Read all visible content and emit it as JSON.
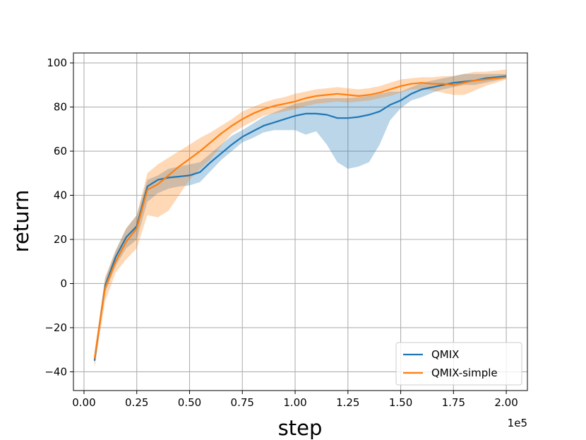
{
  "chart_data": {
    "type": "line",
    "xlabel": "step",
    "ylabel": "return",
    "x_offset_label": "1e5",
    "xlim": [
      -0.05,
      2.1
    ],
    "ylim": [
      -48.5,
      104.5
    ],
    "xticks": [
      0.0,
      0.25,
      0.5,
      0.75,
      1.0,
      1.25,
      1.5,
      1.75,
      2.0
    ],
    "xtick_labels": [
      "0.00",
      "0.25",
      "0.50",
      "0.75",
      "1.00",
      "1.25",
      "1.50",
      "1.75",
      "2.00"
    ],
    "yticks": [
      -40,
      -20,
      0,
      20,
      40,
      60,
      80,
      100
    ],
    "ytick_labels": [
      "−40",
      "−20",
      "0",
      "20",
      "40",
      "60",
      "80",
      "100"
    ],
    "grid": true,
    "legend_position": "bottom-right",
    "x": [
      0.05,
      0.1,
      0.15,
      0.2,
      0.25,
      0.3,
      0.35,
      0.4,
      0.45,
      0.5,
      0.55,
      0.6,
      0.65,
      0.7,
      0.75,
      0.8,
      0.85,
      0.9,
      0.95,
      1.0,
      1.05,
      1.1,
      1.15,
      1.2,
      1.25,
      1.3,
      1.35,
      1.4,
      1.45,
      1.5,
      1.55,
      1.6,
      1.65,
      1.7,
      1.75,
      1.8,
      1.85,
      1.9,
      1.95,
      2.0
    ],
    "series": [
      {
        "name": "QMIX",
        "color": "#1f77b4",
        "values": [
          -35,
          -1,
          12,
          21,
          26,
          44,
          47,
          48,
          48.5,
          49,
          50.5,
          55,
          59,
          63,
          66.5,
          69,
          71.5,
          73,
          74.5,
          76,
          77,
          77,
          76.5,
          75,
          75,
          75.5,
          76.5,
          78,
          81,
          83,
          86,
          88,
          89,
          90,
          91,
          91.5,
          92,
          93,
          93.5,
          94
        ],
        "lower": [
          -37,
          -4,
          8,
          16,
          20,
          37,
          41,
          43,
          44,
          44.5,
          46,
          51,
          56,
          60,
          64,
          66,
          68.5,
          69.5,
          69.5,
          69.5,
          67.5,
          69,
          63,
          55,
          52,
          53,
          55,
          63,
          74,
          79.5,
          83,
          84.5,
          86.5,
          88,
          89,
          90,
          90,
          91,
          92,
          93
        ],
        "upper": [
          -32,
          2,
          15,
          25,
          31,
          47,
          49,
          52,
          53,
          54,
          55,
          59,
          63,
          67,
          69.5,
          72.5,
          75.5,
          77.5,
          79.5,
          81.5,
          82.5,
          83.5,
          84,
          84,
          84,
          84.5,
          85,
          86,
          87,
          87,
          89,
          91,
          92,
          93,
          94,
          95,
          95,
          95,
          95,
          95
        ]
      },
      {
        "name": "QMIX-simple",
        "color": "#ff7f0e",
        "values": [
          -34,
          -2,
          10,
          19,
          25,
          42.5,
          45,
          49,
          53,
          56.5,
          60,
          64,
          68,
          71.5,
          74.5,
          77,
          79,
          80.5,
          81.5,
          82.5,
          84,
          85,
          85.5,
          86,
          85.5,
          85,
          85.5,
          86.5,
          88,
          89.5,
          90.5,
          91,
          90.5,
          90.5,
          90,
          91,
          92,
          92.5,
          93,
          93.5
        ],
        "lower": [
          -38,
          -8,
          5,
          11,
          16,
          31,
          30,
          33,
          40,
          47,
          52,
          56.5,
          62.5,
          68,
          71,
          73.5,
          76,
          77,
          78,
          79,
          80.5,
          81.5,
          82,
          82.5,
          82,
          82.5,
          83,
          84,
          85,
          86.5,
          88,
          88,
          87.5,
          86.5,
          85.5,
          85.5,
          87.5,
          89.5,
          91,
          92.5
        ],
        "upper": [
          -31,
          3,
          15,
          25,
          31,
          50,
          54,
          57,
          60,
          63,
          66,
          68.5,
          71.5,
          74.5,
          78,
          80,
          82,
          83.5,
          84.5,
          86,
          87,
          88,
          88.5,
          89,
          88.5,
          88,
          88.5,
          89.5,
          91,
          92.5,
          93,
          93.5,
          93.5,
          94,
          94,
          95,
          96,
          96,
          96.5,
          97
        ]
      }
    ]
  }
}
